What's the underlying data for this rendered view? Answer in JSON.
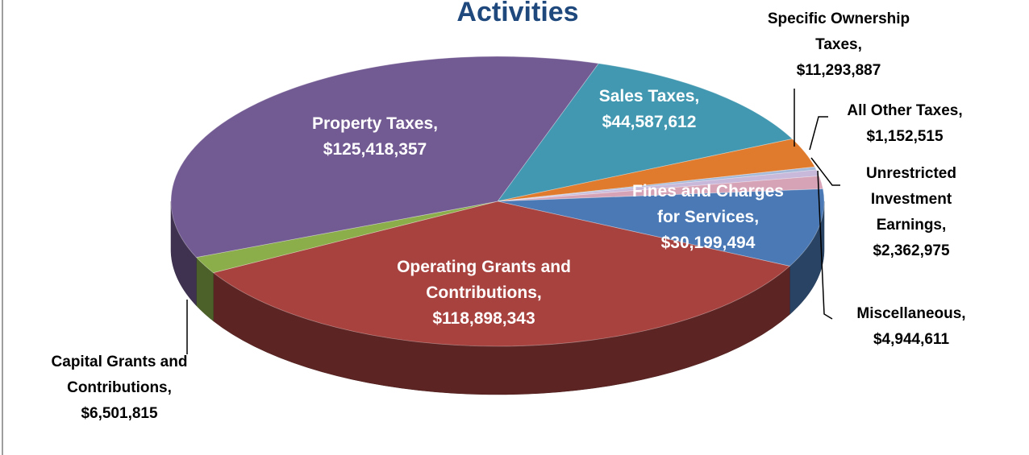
{
  "chart_data": {
    "type": "pie3d",
    "title": "Activities",
    "categories": [
      "Sales Taxes,",
      "Specific Ownership Taxes,",
      "All Other Taxes,",
      "Unrestricted Investment Earnings,",
      "Miscellaneous,",
      "Fines and Charges for Services,",
      "Operating Grants and Contributions,",
      "Capital Grants and Contributions,",
      "Property Taxes,"
    ],
    "values": [
      44587612,
      11293887,
      1152515,
      2362975,
      4944611,
      30199494,
      118898343,
      6501815,
      125418357
    ],
    "value_labels": [
      "$44,587,612",
      "$11,293,887",
      "$1,152,515",
      "$2,362,975",
      "$4,944,611",
      "$30,199,494",
      "$118,898,343",
      "$6,501,815",
      "$125,418,357"
    ],
    "colors": [
      "#4298b0",
      "#e07b2d",
      "#a5b9d9",
      "#c8b8da",
      "#d6a3b6",
      "#4a79b5",
      "#a8423f",
      "#8bae4a",
      "#725a92"
    ]
  }
}
